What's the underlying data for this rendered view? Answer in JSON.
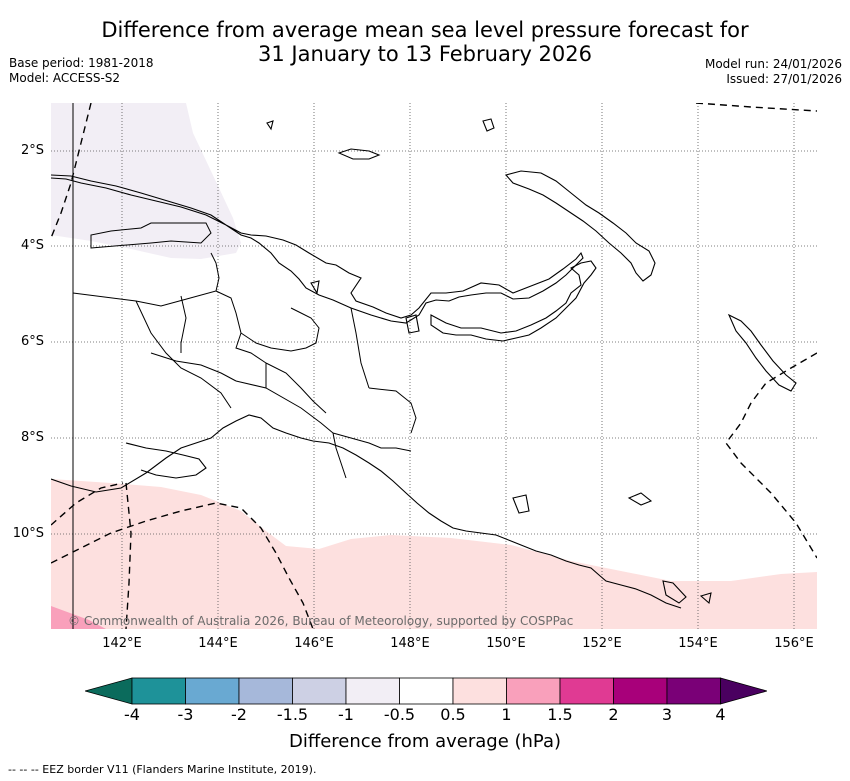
{
  "header": {
    "title_line1": "Difference from average mean sea level pressure forecast for",
    "title_line2": "31 January to 13 February 2026",
    "base_period": "Base period: 1981-2018",
    "model": "Model: ACCESS-S2",
    "model_run": "Model run: 24/01/2026",
    "issued": "Issued: 27/01/2026"
  },
  "map": {
    "latitude_labels": [
      "2°S",
      "4°S",
      "6°S",
      "8°S",
      "10°S"
    ],
    "longitude_labels": [
      "142°E",
      "144°E",
      "146°E",
      "148°E",
      "150°E",
      "152°E",
      "154°E",
      "156°E"
    ],
    "copyright": "© Commonwealth of Australia 2026, Bureau of Meteorology, supported by COSPPac"
  },
  "colorbar": {
    "title": "Difference from average (hPa)",
    "ticks": [
      "-4",
      "-3",
      "-2",
      "-1.5",
      "-1",
      "-0.5",
      "0.5",
      "1",
      "1.5",
      "2",
      "3",
      "4"
    ],
    "colors": [
      "#0b6b5c",
      "#1e9299",
      "#69a9d2",
      "#a6b8da",
      "#cdd0e4",
      "#f2eef5",
      "#ffffff",
      "#fde0df",
      "#f9a0bb",
      "#e03a93",
      "#a8007a",
      "#7a0077",
      "#4a0060"
    ]
  },
  "footnote": "-- -- -- EEZ border V11 (Flanders Marine Institute, 2019)."
}
